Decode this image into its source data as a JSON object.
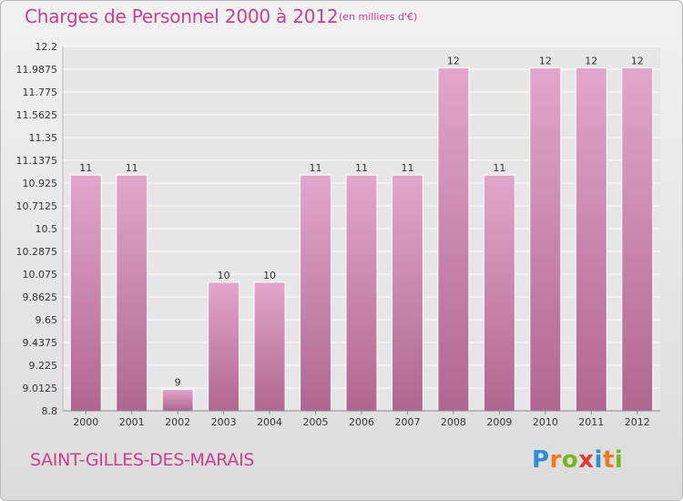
{
  "chart_data": {
    "type": "bar",
    "title": "Charges de Personnel 2000 à 2012",
    "subtitle": "(en milliers d'€)",
    "categories": [
      "2000",
      "2001",
      "2002",
      "2003",
      "2004",
      "2005",
      "2006",
      "2007",
      "2008",
      "2009",
      "2010",
      "2011",
      "2012"
    ],
    "values": [
      11,
      11,
      9,
      10,
      10,
      11,
      11,
      11,
      12,
      11,
      12,
      12,
      12
    ],
    "bar_values": [
      11,
      11,
      9,
      10,
      10,
      11,
      11,
      11,
      12,
      11,
      12,
      12,
      12
    ],
    "data_labels": [
      "11",
      "11",
      "9",
      "10",
      "10",
      "11",
      "11",
      "11",
      "12",
      "11",
      "12",
      "12",
      "12"
    ],
    "ylim": [
      8.8,
      12.2
    ],
    "yticks": [
      "12.2",
      "11.9875",
      "11.775",
      "11.5625",
      "11.35",
      "11.1375",
      "10.925",
      "10.7125",
      "10.5",
      "10.2875",
      "10.075",
      "9.8625",
      "9.65",
      "9.4375",
      "9.225",
      "9.0125",
      "8.8"
    ],
    "ytick_values": [
      12.2,
      11.9875,
      11.775,
      11.5625,
      11.35,
      11.1375,
      10.925,
      10.7125,
      10.5,
      10.2875,
      10.075,
      9.8625,
      9.65,
      9.4375,
      9.225,
      9.0125,
      8.8
    ],
    "grid": true,
    "bar_color_top": "#e3a6cb",
    "bar_color_bottom": "#b0678f"
  },
  "footer": {
    "place": "SAINT-GILLES-DES-MARAIS"
  },
  "logo": {
    "letters": [
      "P",
      "r",
      "o",
      "x",
      "i",
      "t",
      "i"
    ],
    "colors": [
      "#2b8ed6",
      "#f07a1a",
      "#7ab51d",
      "#e33b2f",
      "#2b8ed6",
      "#f07a1a",
      "#7ab51d"
    ]
  },
  "colors": {
    "title": "#cc3f8a",
    "grid": "#ffffff",
    "background": "#e6e6e6"
  }
}
